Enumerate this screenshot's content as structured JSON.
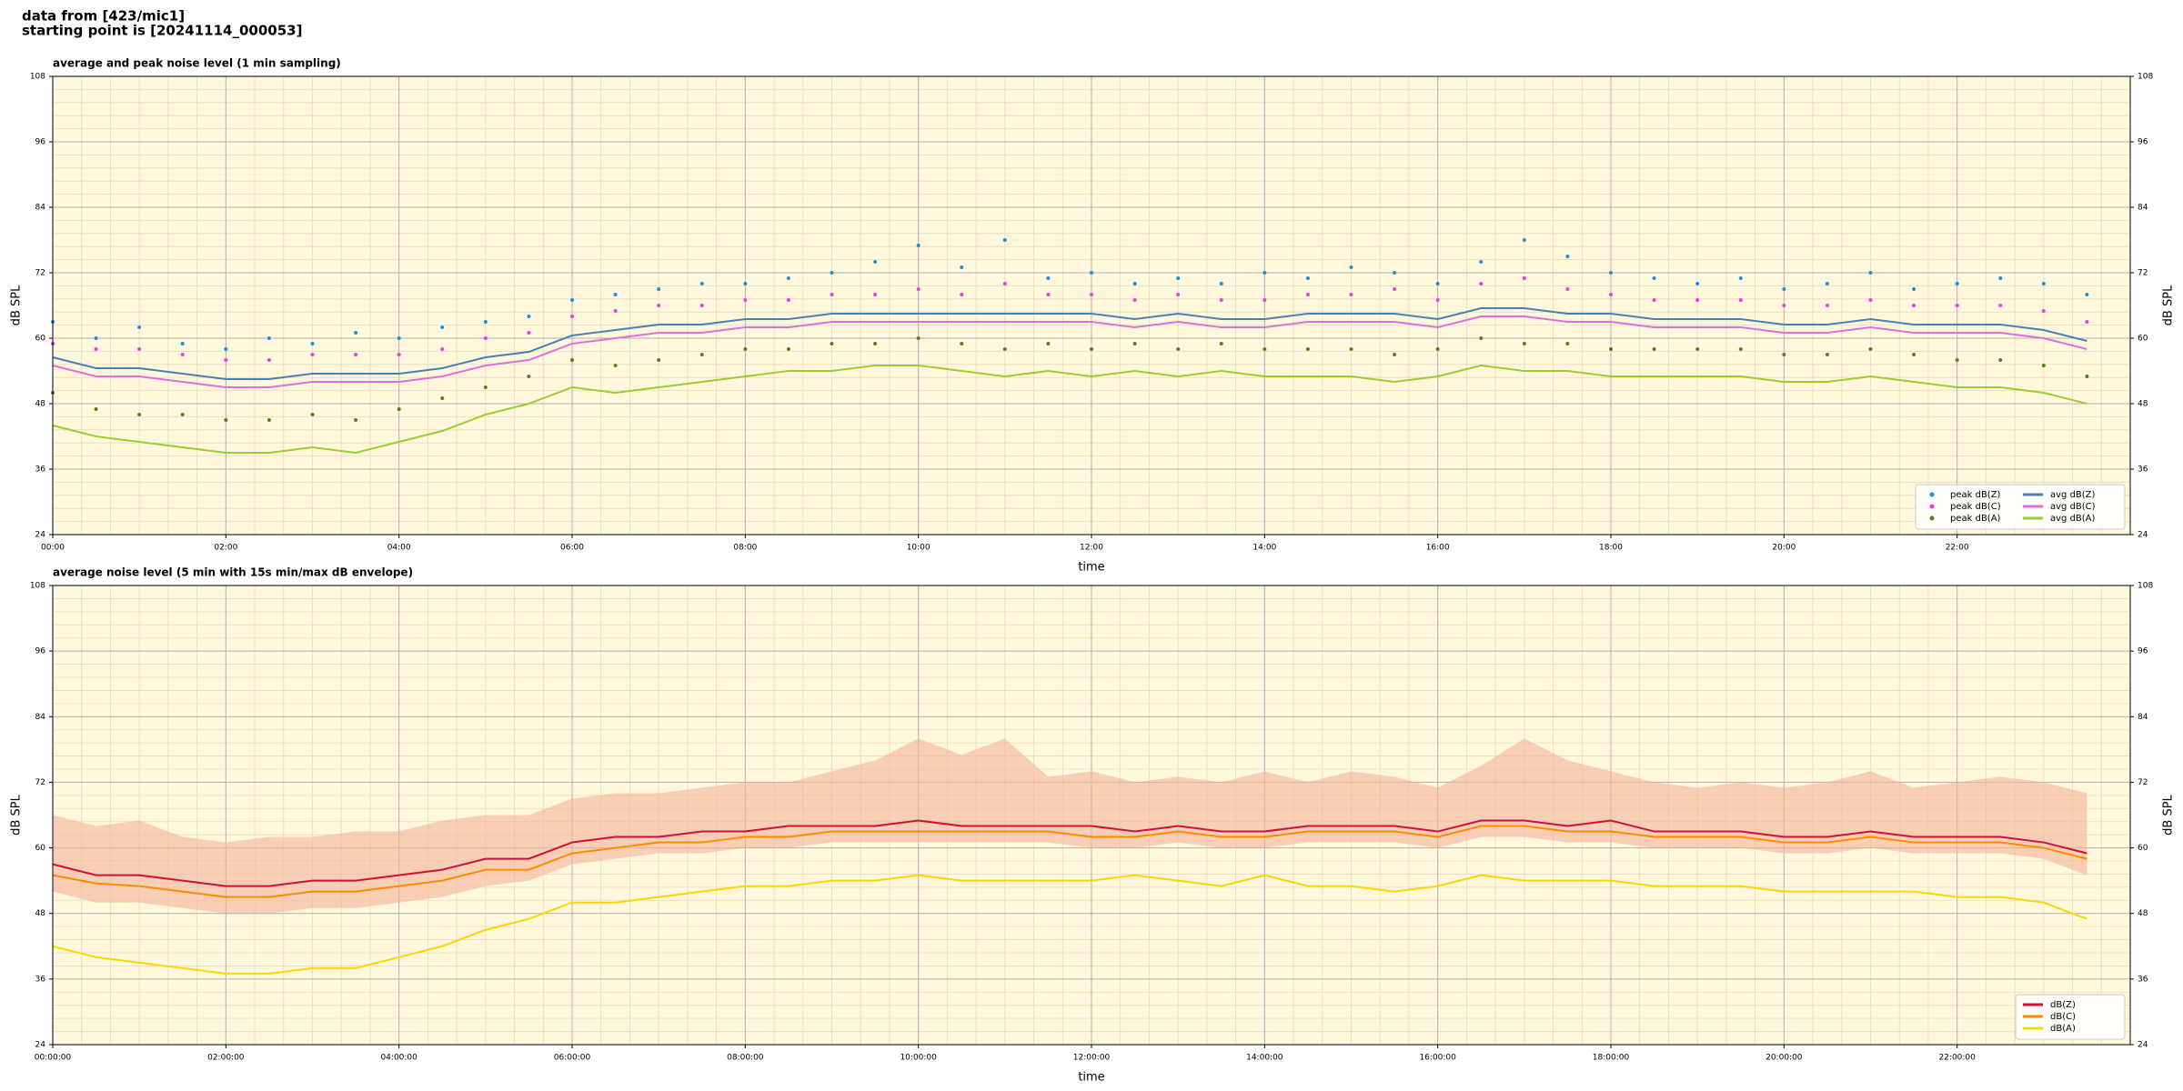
{
  "header": [
    "data from [423/mic1]",
    "starting point is [20241114_000053]"
  ],
  "chart_data": [
    {
      "type": "line",
      "title": "average and peak noise level (1 min sampling)",
      "xlabel": "time",
      "ylabel": "dB SPL",
      "x": [
        0,
        0.5,
        1,
        1.5,
        2,
        2.5,
        3,
        3.5,
        4,
        4.5,
        5,
        5.5,
        6,
        6.5,
        7,
        7.5,
        8,
        8.5,
        9,
        9.5,
        10,
        10.5,
        11,
        11.5,
        12,
        12.5,
        13,
        13.5,
        14,
        14.5,
        15,
        15.5,
        16,
        16.5,
        17,
        17.5,
        18,
        18.5,
        19,
        19.5,
        20,
        20.5,
        21,
        21.5,
        22,
        22.5,
        23,
        23.5
      ],
      "xlim": [
        0,
        24
      ],
      "xticks": [
        {
          "value": 0,
          "label": "00:00"
        },
        {
          "value": 2,
          "label": "02:00"
        },
        {
          "value": 4,
          "label": "04:00"
        },
        {
          "value": 6,
          "label": "06:00"
        },
        {
          "value": 8,
          "label": "08:00"
        },
        {
          "value": 10,
          "label": "10:00"
        },
        {
          "value": 12,
          "label": "12:00"
        },
        {
          "value": 14,
          "label": "14:00"
        },
        {
          "value": 16,
          "label": "16:00"
        },
        {
          "value": 18,
          "label": "18:00"
        },
        {
          "value": 20,
          "label": "20:00"
        },
        {
          "value": 22,
          "label": "22:00"
        }
      ],
      "ylim": [
        24,
        108
      ],
      "yticks": [
        24,
        36,
        48,
        60,
        72,
        84,
        96,
        108
      ],
      "grid": true,
      "legend": "lower right",
      "legend_columns": 2,
      "series": [
        {
          "name": "peak dB(Z)",
          "type": "scatter",
          "color": "#1f8fd8",
          "values": [
            63,
            60,
            62,
            59,
            58,
            60,
            59,
            61,
            60,
            62,
            63,
            64,
            67,
            68,
            69,
            70,
            70,
            71,
            72,
            74,
            77,
            73,
            78,
            71,
            72,
            70,
            71,
            70,
            72,
            71,
            73,
            72,
            70,
            74,
            78,
            75,
            72,
            71,
            70,
            71,
            69,
            70,
            72,
            69,
            70,
            71,
            70,
            68
          ]
        },
        {
          "name": "peak dB(C)",
          "type": "scatter",
          "color": "#e83ee0",
          "values": [
            59,
            58,
            58,
            57,
            56,
            56,
            57,
            57,
            57,
            58,
            60,
            61,
            64,
            65,
            66,
            66,
            67,
            67,
            68,
            68,
            69,
            68,
            70,
            68,
            68,
            67,
            68,
            67,
            67,
            68,
            68,
            69,
            67,
            70,
            71,
            69,
            68,
            67,
            67,
            67,
            66,
            66,
            67,
            66,
            66,
            66,
            65,
            63
          ]
        },
        {
          "name": "peak dB(A)",
          "type": "scatter",
          "color": "#5a7d2a",
          "values": [
            50,
            47,
            46,
            46,
            45,
            45,
            46,
            45,
            47,
            49,
            51,
            53,
            56,
            55,
            56,
            57,
            58,
            58,
            59,
            59,
            60,
            59,
            58,
            59,
            58,
            59,
            58,
            59,
            58,
            58,
            58,
            57,
            58,
            60,
            59,
            59,
            58,
            58,
            58,
            58,
            57,
            57,
            58,
            57,
            56,
            56,
            55,
            53
          ]
        },
        {
          "name": "avg dB(Z)",
          "type": "line",
          "color": "#4a7fb5",
          "values": [
            56.5,
            54.5,
            54.5,
            53.5,
            52.5,
            52.5,
            53.5,
            53.5,
            53.5,
            54.5,
            56.5,
            57.5,
            60.5,
            61.5,
            62.5,
            62.5,
            63.5,
            63.5,
            64.5,
            64.5,
            64.5,
            64.5,
            64.5,
            64.5,
            64.5,
            63.5,
            64.5,
            63.5,
            63.5,
            64.5,
            64.5,
            64.5,
            63.5,
            65.5,
            65.5,
            64.5,
            64.5,
            63.5,
            63.5,
            63.5,
            62.5,
            62.5,
            63.5,
            62.5,
            62.5,
            62.5,
            61.5,
            59.5
          ]
        },
        {
          "name": "avg dB(C)",
          "type": "line",
          "color": "#e070d8",
          "values": [
            55,
            53,
            53,
            52,
            51,
            51,
            52,
            52,
            52,
            53,
            55,
            56,
            59,
            60,
            61,
            61,
            62,
            62,
            63,
            63,
            63,
            63,
            63,
            63,
            63,
            62,
            63,
            62,
            62,
            63,
            63,
            63,
            62,
            64,
            64,
            63,
            63,
            62,
            62,
            62,
            61,
            61,
            62,
            61,
            61,
            61,
            60,
            58
          ]
        },
        {
          "name": "avg dB(A)",
          "type": "line",
          "color": "#9acd32",
          "values": [
            44,
            42,
            41,
            40,
            39,
            39,
            40,
            39,
            41,
            43,
            46,
            48,
            51,
            50,
            51,
            52,
            53,
            54,
            54,
            55,
            55,
            54,
            53,
            54,
            53,
            54,
            53,
            54,
            53,
            53,
            53,
            52,
            53,
            55,
            54,
            54,
            53,
            53,
            53,
            53,
            52,
            52,
            53,
            52,
            51,
            51,
            50,
            48
          ]
        }
      ]
    },
    {
      "type": "line",
      "title": "average noise level (5 min with 15s min/max dB envelope)",
      "xlabel": "time",
      "ylabel": "dB SPL",
      "x": [
        0,
        0.5,
        1,
        1.5,
        2,
        2.5,
        3,
        3.5,
        4,
        4.5,
        5,
        5.5,
        6,
        6.5,
        7,
        7.5,
        8,
        8.5,
        9,
        9.5,
        10,
        10.5,
        11,
        11.5,
        12,
        12.5,
        13,
        13.5,
        14,
        14.5,
        15,
        15.5,
        16,
        16.5,
        17,
        17.5,
        18,
        18.5,
        19,
        19.5,
        20,
        20.5,
        21,
        21.5,
        22,
        22.5,
        23,
        23.5
      ],
      "xlim": [
        0,
        24
      ],
      "xticks": [
        {
          "value": 0,
          "label": "00:00:00"
        },
        {
          "value": 2,
          "label": "02:00:00"
        },
        {
          "value": 4,
          "label": "04:00:00"
        },
        {
          "value": 6,
          "label": "06:00:00"
        },
        {
          "value": 8,
          "label": "08:00:00"
        },
        {
          "value": 10,
          "label": "10:00:00"
        },
        {
          "value": 12,
          "label": "12:00:00"
        },
        {
          "value": 14,
          "label": "14:00:00"
        },
        {
          "value": 16,
          "label": "16:00:00"
        },
        {
          "value": 18,
          "label": "18:00:00"
        },
        {
          "value": 20,
          "label": "20:00:00"
        },
        {
          "value": 22,
          "label": "22:00:00"
        }
      ],
      "ylim": [
        24,
        108
      ],
      "yticks": [
        24,
        36,
        48,
        60,
        72,
        84,
        96,
        108
      ],
      "grid": true,
      "legend": "lower right",
      "legend_columns": 1,
      "envelope": {
        "color": "#f4b49a",
        "low": [
          52,
          50,
          50,
          49,
          48,
          48,
          49,
          49,
          50,
          51,
          53,
          54,
          57,
          58,
          59,
          59,
          60,
          60,
          61,
          61,
          61,
          61,
          61,
          61,
          60,
          60,
          61,
          60,
          60,
          61,
          61,
          61,
          60,
          62,
          62,
          61,
          61,
          60,
          60,
          60,
          59,
          59,
          60,
          59,
          59,
          59,
          58,
          55
        ],
        "high": [
          66,
          64,
          65,
          62,
          61,
          62,
          62,
          63,
          63,
          65,
          66,
          66,
          69,
          70,
          70,
          71,
          72,
          72,
          74,
          76,
          80,
          77,
          80,
          73,
          74,
          72,
          73,
          72,
          74,
          72,
          74,
          73,
          71,
          75,
          80,
          76,
          74,
          72,
          71,
          72,
          71,
          72,
          74,
          71,
          72,
          73,
          72,
          70
        ]
      },
      "series": [
        {
          "name": "dB(Z)",
          "type": "line",
          "color": "#d0103a",
          "values": [
            57,
            55,
            55,
            54,
            53,
            53,
            54,
            54,
            55,
            56,
            58,
            58,
            61,
            62,
            62,
            63,
            63,
            64,
            64,
            64,
            65,
            64,
            64,
            64,
            64,
            63,
            64,
            63,
            63,
            64,
            64,
            64,
            63,
            65,
            65,
            64,
            65,
            63,
            63,
            63,
            62,
            62,
            63,
            62,
            62,
            62,
            61,
            59
          ]
        },
        {
          "name": "dB(C)",
          "type": "line",
          "color": "#ff8c00",
          "values": [
            55,
            53.5,
            53,
            52,
            51,
            51,
            52,
            52,
            53,
            54,
            56,
            56,
            59,
            60,
            61,
            61,
            62,
            62,
            63,
            63,
            63,
            63,
            63,
            63,
            62,
            62,
            63,
            62,
            62,
            63,
            63,
            63,
            62,
            64,
            64,
            63,
            63,
            62,
            62,
            62,
            61,
            61,
            62,
            61,
            61,
            61,
            60,
            58
          ]
        },
        {
          "name": "dB(A)",
          "type": "line",
          "color": "#ffd700",
          "values": [
            42,
            40,
            39,
            38,
            37,
            37,
            38,
            38,
            40,
            42,
            45,
            47,
            50,
            50,
            51,
            52,
            53,
            53,
            54,
            54,
            55,
            54,
            54,
            54,
            54,
            55,
            54,
            53,
            55,
            53,
            53,
            52,
            53,
            55,
            54,
            54,
            54,
            53,
            53,
            53,
            52,
            52,
            52,
            52,
            51,
            51,
            50,
            47
          ]
        }
      ]
    }
  ]
}
